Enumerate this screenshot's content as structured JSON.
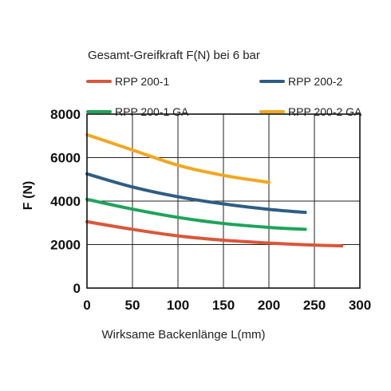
{
  "chart_data": {
    "type": "line",
    "title": "Gesamt-Greifkraft F(N) bei 6 bar",
    "xlabel": "Wirksame Backenlänge L(mm)",
    "ylabel": "F (N)",
    "xlim": [
      0,
      300
    ],
    "ylim": [
      0,
      8000
    ],
    "xticks": [
      "0",
      "50",
      "100",
      "150",
      "200",
      "250",
      "300"
    ],
    "yticks": [
      "0",
      "2000",
      "4000",
      "6000",
      "8000"
    ],
    "grid": true,
    "legend_position": "top",
    "series": [
      {
        "name": "RPP 200-1",
        "color": "#d9573a",
        "x": [
          0,
          50,
          100,
          150,
          200,
          240,
          280
        ],
        "y": [
          3050,
          2700,
          2400,
          2200,
          2070,
          1990,
          1940
        ]
      },
      {
        "name": "RPP 200-2",
        "color": "#2f5d84",
        "x": [
          0,
          50,
          100,
          150,
          200,
          240
        ],
        "y": [
          5250,
          4650,
          4200,
          3870,
          3620,
          3480
        ]
      },
      {
        "name": "RPP 200-1 GA",
        "color": "#1ea45a",
        "x": [
          0,
          50,
          100,
          150,
          200,
          240
        ],
        "y": [
          4080,
          3630,
          3250,
          2970,
          2790,
          2700
        ]
      },
      {
        "name": "RPP 200-2 GA",
        "color": "#f2a722",
        "x": [
          0,
          50,
          100,
          150,
          200
        ],
        "y": [
          7050,
          6350,
          5650,
          5180,
          4860
        ]
      }
    ]
  }
}
